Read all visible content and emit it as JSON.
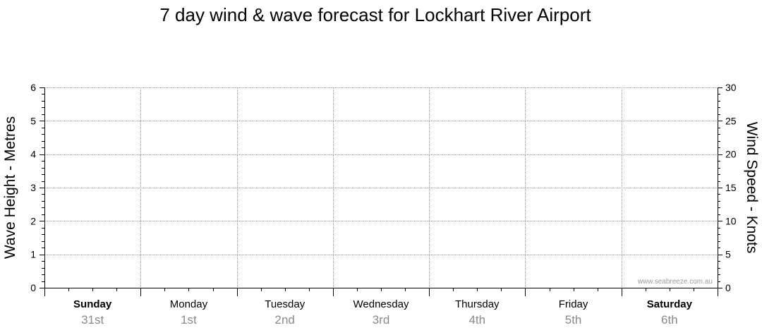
{
  "chart_data": {
    "type": "line",
    "title": "7 day wind & wave forecast for Lockhart River Airport",
    "ylabel_left": "Wave Height - Metres",
    "ylabel_right": "Wind Speed - Knots",
    "ylim_left": [
      0,
      6
    ],
    "ylim_right": [
      0,
      30
    ],
    "yticks_left": [
      "0",
      "1",
      "2",
      "3",
      "4",
      "5",
      "6"
    ],
    "yticks_right": [
      "0",
      "5",
      "10",
      "15",
      "20",
      "25",
      "30"
    ],
    "grid": true,
    "days": [
      {
        "name": "Sunday",
        "date": "31st",
        "bold": true
      },
      {
        "name": "Monday",
        "date": "1st",
        "bold": false
      },
      {
        "name": "Tuesday",
        "date": "2nd",
        "bold": false
      },
      {
        "name": "Wednesday",
        "date": "3rd",
        "bold": false
      },
      {
        "name": "Thursday",
        "date": "4th",
        "bold": false
      },
      {
        "name": "Friday",
        "date": "5th",
        "bold": false
      },
      {
        "name": "Saturday",
        "date": "6th",
        "bold": true
      }
    ],
    "series": []
  },
  "watermark": "www.seabreeze.com.au",
  "colors": {
    "axis": "#000000",
    "grid": "#9a9a9a",
    "date_text": "#8a8a8a"
  }
}
